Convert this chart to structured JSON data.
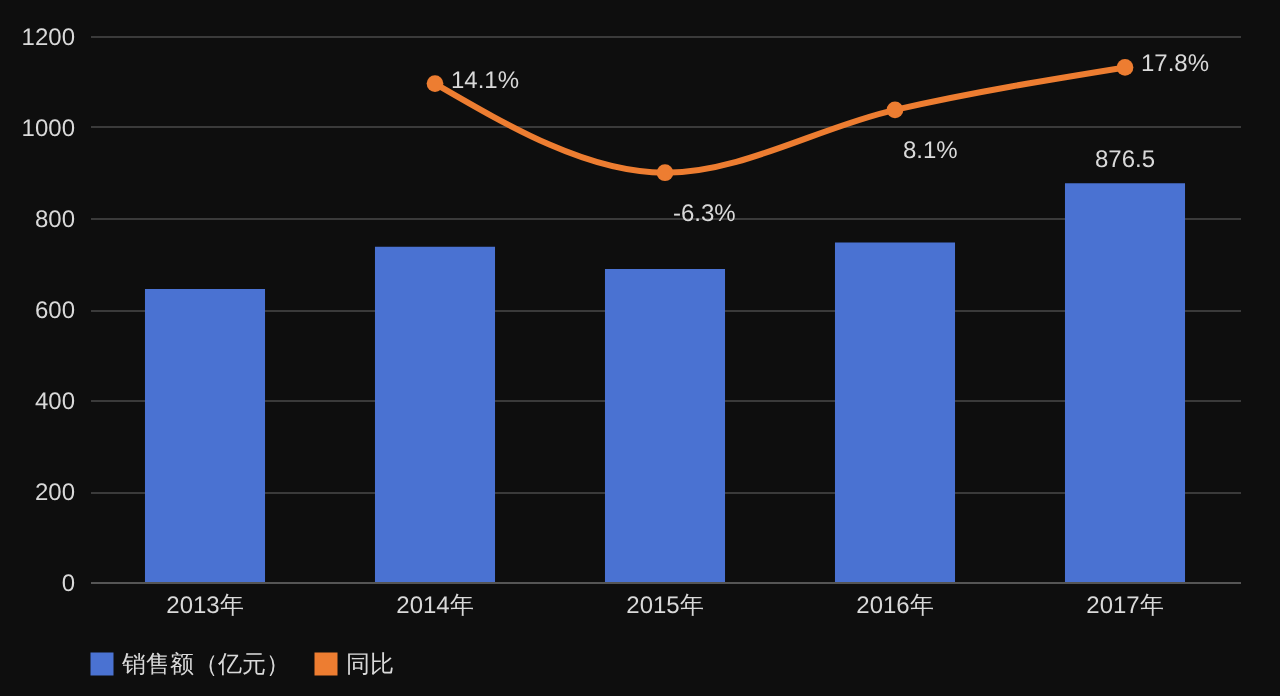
{
  "chart_data": {
    "type": "bar",
    "categories": [
      "2013年",
      "2014年",
      "2015年",
      "2016年",
      "2017年"
    ],
    "series": [
      {
        "name": "销售额（亿元）",
        "color": "#4a72d2",
        "values": [
          644,
          737,
          688,
          746,
          876.5
        ],
        "value_labels": [
          null,
          null,
          null,
          null,
          "876.5"
        ]
      },
      {
        "name": "同比",
        "type": "line",
        "axis": "y2",
        "color": "#ed7d31",
        "values": [
          null,
          14.1,
          -6.3,
          8.1,
          17.8
        ],
        "value_labels": [
          null,
          "14.1%",
          "-6.3%",
          "8.1%",
          "17.8%"
        ]
      }
    ],
    "ylim": [
      0,
      1200
    ],
    "yticks": [
      0,
      200,
      400,
      600,
      800,
      1000,
      1200
    ],
    "y2lim": [
      -100,
      25
    ],
    "grid": "y",
    "legend": "bottom",
    "marker": "circle",
    "line_style": "solid"
  }
}
